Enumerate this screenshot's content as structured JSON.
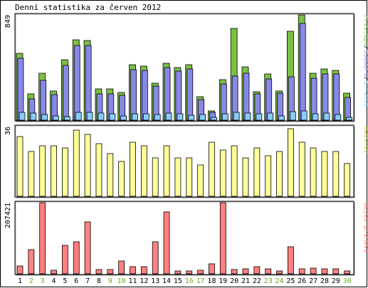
{
  "title": "Denní statistika za červen 2012",
  "colors": {
    "visits": "#7ac142",
    "files": "#8888e8",
    "pages": "#88ccf8",
    "volume": "#ff8080",
    "hits": "#ffff99",
    "weekday_label": "#000000",
    "weekend_label": "#6aa81e"
  },
  "chart_data": [
    {
      "type": "bar",
      "panel": "top",
      "y_max_label": "849",
      "ylim": [
        0,
        849
      ],
      "legend_parts": [
        {
          "text": "Přístupů",
          "color": "#7ac142"
        },
        {
          "text": "/",
          "color": "#000000"
        },
        {
          "text": "Souborů",
          "color": "#8888e8"
        },
        {
          "text": "/",
          "color": "#000000"
        },
        {
          "text": "Stránek",
          "color": "#88ccf8"
        }
      ],
      "series": [
        {
          "name": "Přístupů",
          "values": [
            540,
            215,
            379,
            236,
            488,
            651,
            640,
            255,
            255,
            225,
            445,
            436,
            301,
            457,
            424,
            449,
            189,
            75,
            327,
            739,
            431,
            227,
            374,
            236,
            715,
            849,
            379,
            412,
            404,
            220
          ]
        },
        {
          "name": "Souborů",
          "values": [
            498,
            174,
            322,
            209,
            443,
            602,
            602,
            214,
            214,
            198,
            409,
            402,
            275,
            424,
            394,
            412,
            166,
            61,
            292,
            356,
            377,
            211,
            334,
            219,
            348,
            778,
            341,
            375,
            372,
            181
          ]
        },
        {
          "name": "Stránek",
          "values": [
            63,
            55,
            47,
            34,
            31,
            65,
            65,
            55,
            51,
            37,
            54,
            53,
            44,
            55,
            50,
            42,
            47,
            23,
            51,
            63,
            59,
            54,
            55,
            32,
            69,
            72,
            53,
            56,
            47,
            23
          ]
        }
      ]
    },
    {
      "type": "bar",
      "panel": "middle",
      "y_max_label": "36",
      "ylim": [
        0,
        36
      ],
      "legend_parts": [
        {
          "text": "Návštěv",
          "color": "#c8c832"
        }
      ],
      "series": [
        {
          "name": "Návštěv",
          "values": [
            31,
            23,
            26,
            26,
            25,
            34,
            32,
            27,
            22,
            18,
            28,
            26,
            20,
            26,
            20,
            20,
            16,
            28,
            24,
            26,
            20,
            25,
            21,
            23,
            35,
            28,
            25,
            23,
            23,
            17
          ]
        }
      ]
    },
    {
      "type": "bar",
      "panel": "bottom",
      "y_max_label": "207421",
      "ylim": [
        0,
        207421
      ],
      "legend_parts": [
        {
          "text": "Objem přenosu",
          "color": "#ff8080"
        }
      ],
      "series": [
        {
          "name": "Objem přenosu",
          "values": [
            23000,
            70000,
            207421,
            11000,
            83000,
            93000,
            151000,
            12000,
            12000,
            38000,
            20000,
            20000,
            93000,
            180000,
            9000,
            8000,
            11000,
            29000,
            207421,
            13000,
            14000,
            20000,
            15000,
            8000,
            79000,
            15000,
            16000,
            15000,
            15000,
            8000
          ]
        }
      ]
    }
  ],
  "days": [
    {
      "label": "1",
      "weekend": false
    },
    {
      "label": "2",
      "weekend": true
    },
    {
      "label": "3",
      "weekend": true
    },
    {
      "label": "4",
      "weekend": false
    },
    {
      "label": "5",
      "weekend": false
    },
    {
      "label": "6",
      "weekend": false
    },
    {
      "label": "7",
      "weekend": false
    },
    {
      "label": "8",
      "weekend": false
    },
    {
      "label": "9",
      "weekend": true
    },
    {
      "label": "10",
      "weekend": true
    },
    {
      "label": "11",
      "weekend": false
    },
    {
      "label": "12",
      "weekend": false
    },
    {
      "label": "13",
      "weekend": false
    },
    {
      "label": "14",
      "weekend": false
    },
    {
      "label": "15",
      "weekend": false
    },
    {
      "label": "16",
      "weekend": true
    },
    {
      "label": "17",
      "weekend": true
    },
    {
      "label": "18",
      "weekend": false
    },
    {
      "label": "19",
      "weekend": false
    },
    {
      "label": "20",
      "weekend": false
    },
    {
      "label": "21",
      "weekend": false
    },
    {
      "label": "22",
      "weekend": false
    },
    {
      "label": "23",
      "weekend": true
    },
    {
      "label": "24",
      "weekend": true
    },
    {
      "label": "25",
      "weekend": false
    },
    {
      "label": "26",
      "weekend": false
    },
    {
      "label": "27",
      "weekend": false
    },
    {
      "label": "28",
      "weekend": false
    },
    {
      "label": "29",
      "weekend": false
    },
    {
      "label": "30",
      "weekend": true
    }
  ]
}
